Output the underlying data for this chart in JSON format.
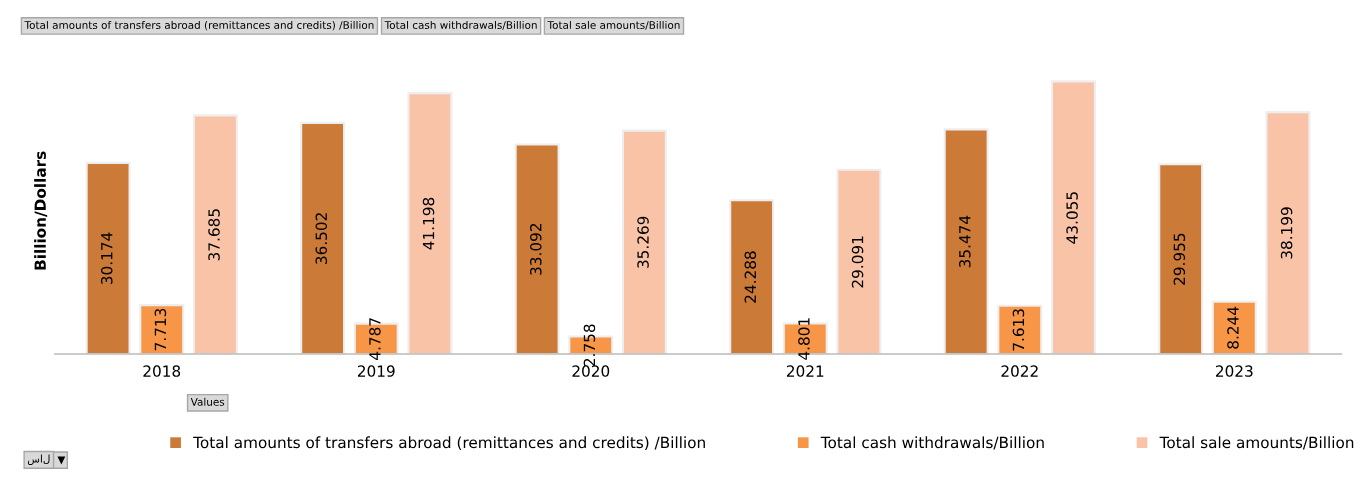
{
  "chart_data": {
    "type": "bar",
    "ylabel": "Billion/Dollars",
    "categories": [
      "2018",
      "2019",
      "2020",
      "2021",
      "2022",
      "2023"
    ],
    "series": [
      {
        "name": "Total amounts of transfers abroad (remittances and credits) /Billion",
        "color": "#cb7a38",
        "values": [
          30.174,
          36.502,
          33.092,
          24.288,
          35.474,
          29.955
        ]
      },
      {
        "name": "Total cash withdrawals/Billion",
        "color": "#f79646",
        "values": [
          7.713,
          4.787,
          2.758,
          4.801,
          7.613,
          8.244
        ]
      },
      {
        "name": "Total sale amounts/Billion",
        "color": "#f9c3a8",
        "values": [
          37.685,
          41.198,
          35.269,
          29.091,
          43.055,
          38.199
        ]
      }
    ],
    "tick_labels": "x",
    "data_labels": true,
    "legend": "bottom",
    "grid": false,
    "annotations": [
      "Total amounts of transfers abroad (remittances and credits) /Billion",
      "Total cash withdrawals/Billion",
      "Total sale amounts/Billion",
      "Values",
      "سال"
    ]
  }
}
